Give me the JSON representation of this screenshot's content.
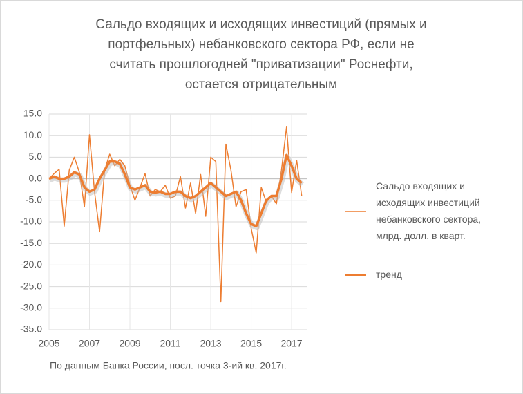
{
  "chart_data": {
    "type": "line",
    "title": [
      "Сальдо входящих и исходящих инвестиций (прямых и",
      "портфельных) небанковского сектора РФ, если не",
      "считать прошлогодней \"приватизации\" Роснефти,",
      "остается отрицательным"
    ],
    "x": [
      2005,
      2005.25,
      2005.5,
      2005.75,
      2006,
      2006.25,
      2006.5,
      2006.75,
      2007,
      2007.25,
      2007.5,
      2007.75,
      2008,
      2008.25,
      2008.5,
      2008.75,
      2009,
      2009.25,
      2009.5,
      2009.75,
      2010,
      2010.25,
      2010.5,
      2010.75,
      2011,
      2011.25,
      2011.5,
      2011.75,
      2012,
      2012.25,
      2012.5,
      2012.75,
      2013,
      2013.25,
      2013.5,
      2013.75,
      2014,
      2014.25,
      2014.5,
      2014.75,
      2015,
      2015.25,
      2015.5,
      2015.75,
      2016,
      2016.25,
      2016.5,
      2016.75,
      2017,
      2017.25,
      2017.5
    ],
    "series": [
      {
        "name": "Сальдо входящих и исходящих инвестиций небанковского сектора, млрд. долл. в кварт.",
        "color": "#ed7d31",
        "width": 1.5,
        "values": [
          0,
          1.2,
          2.2,
          -11,
          2,
          5,
          1.5,
          -6.5,
          10.2,
          -3,
          -12.3,
          2,
          5.7,
          3,
          4.5,
          3,
          -1.5,
          -5,
          -2,
          1.2,
          -4,
          -2.5,
          -3,
          -1.5,
          -4.5,
          -4,
          0.5,
          -6.8,
          -1,
          -8,
          1,
          -8.7,
          5,
          4,
          -28.5,
          8,
          2,
          -6.5,
          -3,
          -2.5,
          -11.5,
          -17.2,
          -2,
          -5.5,
          -4,
          -5.8,
          2,
          12,
          -3.2,
          4.3,
          -4
        ]
      },
      {
        "name": "тренд",
        "color": "#ed7d31",
        "width": 3.5,
        "values": [
          0,
          0.5,
          0,
          0,
          0.5,
          1.5,
          1,
          -2,
          -3,
          -2.5,
          0,
          2,
          4,
          4,
          3.5,
          1,
          -2,
          -2.5,
          -2,
          -1.5,
          -3,
          -3.2,
          -3,
          -3.5,
          -3.5,
          -3,
          -3,
          -4,
          -4.5,
          -4,
          -3,
          -2,
          -1,
          -2,
          -3,
          -4,
          -3.5,
          -3,
          -5,
          -8,
          -10.5,
          -11,
          -8,
          -5,
          -4,
          -4,
          0,
          5.5,
          3,
          0,
          -1
        ]
      }
    ],
    "xlim": [
      2005,
      2017.75
    ],
    "xticks": [
      2005,
      2007,
      2009,
      2011,
      2013,
      2015,
      2017
    ],
    "ylim": [
      -35,
      15
    ],
    "yticks": [
      {
        "value": -35,
        "label": "-35.0"
      },
      {
        "value": -30,
        "label": "-30.0"
      },
      {
        "value": -25,
        "label": "-25.0"
      },
      {
        "value": -20,
        "label": "-20.0"
      },
      {
        "value": -15,
        "label": "-15.0"
      },
      {
        "value": -10,
        "label": "-10.0"
      },
      {
        "value": -5,
        "label": "-5.0"
      },
      {
        "value": 0,
        "label": "0.0"
      },
      {
        "value": 5,
        "label": "5.0"
      },
      {
        "value": 10,
        "label": "10.0"
      },
      {
        "value": 15,
        "label": "15.0"
      }
    ],
    "grid": true,
    "legend": "right",
    "note": "По данным Банка России, посл. точка 3-ий кв. 2017г."
  }
}
